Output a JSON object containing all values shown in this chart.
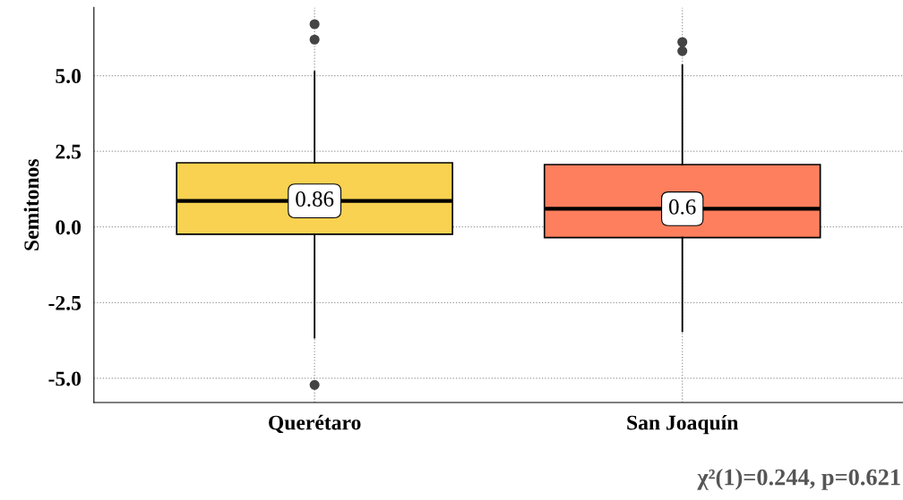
{
  "chart_data": {
    "type": "box",
    "ylabel": "Semitonos",
    "categories": [
      "Querétaro",
      "San Joaquín"
    ],
    "boxes": [
      {
        "low": -3.66,
        "q1": -0.24,
        "median": 0.86,
        "q3": 2.12,
        "high": 5.13,
        "outliers": [
          6.7,
          6.19,
          -5.22
        ]
      },
      {
        "low": -3.45,
        "q1": -0.35,
        "median": 0.6,
        "q3": 2.06,
        "high": 5.34,
        "outliers": [
          6.11,
          5.81
        ]
      }
    ],
    "colors": [
      "#f9d251",
      "#fd7f5e"
    ],
    "ylim": [
      -5.8,
      7.25
    ],
    "yticks": [
      {
        "value": 5,
        "label": "5.0"
      },
      {
        "value": 2.5,
        "label": "2.5"
      },
      {
        "value": 0,
        "label": "0.0"
      },
      {
        "value": -2.5,
        "label": "-2.5"
      },
      {
        "value": -5,
        "label": "-5.0"
      }
    ],
    "grid": true,
    "annotations": [
      {
        "text": "0.86",
        "x": "Querétaro",
        "y": 0.86
      },
      {
        "text": "0.6",
        "x": "San Joaquín",
        "y": 0.6
      },
      "χ²(1)=0.244, p=0.621"
    ]
  }
}
